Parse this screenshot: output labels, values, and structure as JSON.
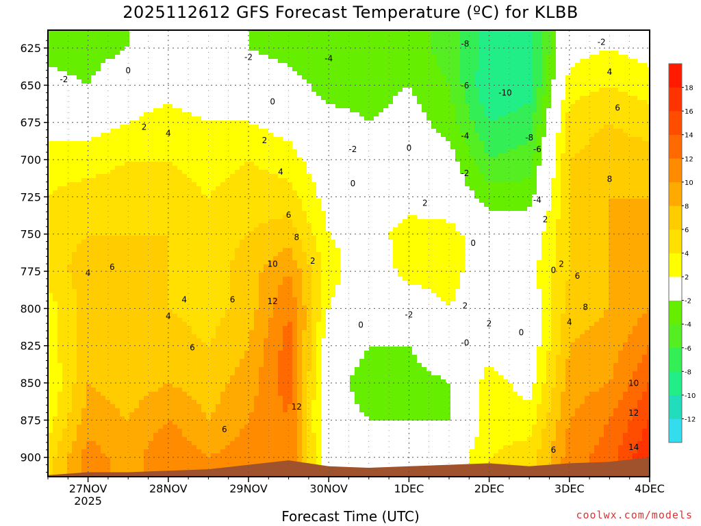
{
  "chart_data": {
    "type": "heatmap",
    "title": "2025112612 GFS Forecast Temperature (ºC) for KLBB",
    "xlabel": "Forecast Time (UTC)",
    "ylabel": "",
    "credit": "coolwx.com/models",
    "x_ticks": [
      {
        "label": "27NOV",
        "sub": "2025",
        "day": 27
      },
      {
        "label": "28NOV",
        "sub": "",
        "day": 28
      },
      {
        "label": "29NOV",
        "sub": "",
        "day": 29
      },
      {
        "label": "30NOV",
        "sub": "",
        "day": 30
      },
      {
        "label": "1DEC",
        "sub": "",
        "day": 31
      },
      {
        "label": "2DEC",
        "sub": "",
        "day": 32
      },
      {
        "label": "3DEC",
        "sub": "",
        "day": 33
      },
      {
        "label": "4DEC",
        "sub": "",
        "day": 34
      }
    ],
    "xlim": [
      26.5,
      34.0
    ],
    "y_axis": {
      "type": "pressure (hPa)",
      "ticks": [
        625,
        650,
        675,
        700,
        725,
        750,
        775,
        800,
        825,
        850,
        875,
        900
      ],
      "ylim": [
        913,
        613
      ],
      "inverted": true
    },
    "colorbar": {
      "levels": [
        -14,
        -12,
        -10,
        -8,
        -6,
        -4,
        -2,
        2,
        4,
        6,
        8,
        10,
        12,
        14,
        16,
        18,
        20
      ],
      "labels": [
        "-12",
        "-10",
        "-8",
        "-6",
        "-4",
        "-2",
        "2",
        "4",
        "6",
        "8",
        "10",
        "12",
        "14",
        "16",
        "18"
      ],
      "colors": [
        "#33ddee",
        "#22ddbb",
        "#22ee88",
        "#33ee55",
        "#55ee22",
        "#66ee00",
        "#ffffff",
        "#ffff00",
        "#ffe000",
        "#ffcc00",
        "#ffaa00",
        "#ff8c00",
        "#ff6a00",
        "#ff4d00",
        "#ff3300",
        "#ff1a00"
      ]
    },
    "rows_hpa": [
      625,
      650,
      675,
      700,
      725,
      750,
      775,
      800,
      825,
      850,
      875,
      900
    ],
    "series": [
      {
        "day": 26.5,
        "temps": [
          -3,
          -1,
          1,
          3,
          4,
          5,
          5,
          3,
          3,
          2,
          3,
          5
        ]
      },
      {
        "day": 27.0,
        "temps": [
          -3,
          -2,
          1,
          3,
          5,
          6,
          7,
          7,
          7,
          8,
          9,
          11
        ]
      },
      {
        "day": 27.5,
        "temps": [
          -2,
          0,
          2,
          4,
          5,
          6,
          6,
          6,
          6,
          7,
          8,
          9
        ]
      },
      {
        "day": 28.0,
        "temps": [
          -2,
          1,
          3,
          4,
          5,
          6,
          6,
          6,
          7,
          8,
          10,
          12
        ]
      },
      {
        "day": 28.5,
        "temps": [
          -2,
          0,
          2,
          3,
          4,
          5,
          5,
          5,
          6,
          7,
          8,
          10
        ]
      },
      {
        "day": 29.0,
        "temps": [
          -2,
          0,
          2,
          4,
          5,
          6,
          7,
          7,
          8,
          9,
          10,
          11
        ]
      },
      {
        "day": 29.5,
        "temps": [
          -3,
          -1,
          1,
          3,
          5,
          7,
          10,
          12,
          13,
          13,
          12,
          12
        ]
      },
      {
        "day": 30.0,
        "temps": [
          -4,
          -3,
          -1,
          0,
          1,
          2,
          3,
          2,
          0,
          -1,
          -1,
          0
        ]
      },
      {
        "day": 30.5,
        "temps": [
          -4,
          -3,
          -2,
          -1,
          0,
          1,
          0,
          -1,
          -2,
          -3,
          -2,
          1
        ]
      },
      {
        "day": 31.0,
        "temps": [
          -3,
          -2,
          -1,
          0,
          1,
          3,
          3,
          0,
          -2,
          -3,
          -2,
          0
        ]
      },
      {
        "day": 31.5,
        "temps": [
          -5,
          -4,
          -3,
          -1,
          0,
          3,
          3,
          2,
          0,
          -2,
          -2,
          0
        ]
      },
      {
        "day": 32.0,
        "temps": [
          -9,
          -10,
          -8,
          -6,
          -3,
          0,
          0,
          0,
          1,
          3,
          3,
          4
        ]
      },
      {
        "day": 32.5,
        "temps": [
          -9,
          -9,
          -7,
          -5,
          -3,
          0,
          1,
          0,
          0,
          1,
          3,
          5
        ]
      },
      {
        "day": 33.0,
        "temps": [
          1,
          3,
          5,
          6,
          6,
          6,
          6,
          7,
          8,
          9,
          10,
          11
        ]
      },
      {
        "day": 33.5,
        "temps": [
          2,
          4,
          6,
          7,
          8,
          8,
          8,
          8,
          9,
          10,
          12,
          13
        ]
      },
      {
        "day": 34.0,
        "temps": [
          1,
          3,
          5,
          7,
          8,
          8,
          9,
          10,
          12,
          14,
          16,
          18
        ]
      }
    ],
    "terrain_pressure_hpa": [
      {
        "day": 26.5,
        "p": 912
      },
      {
        "day": 27.0,
        "p": 910
      },
      {
        "day": 27.5,
        "p": 910
      },
      {
        "day": 28.0,
        "p": 909
      },
      {
        "day": 28.5,
        "p": 908
      },
      {
        "day": 29.0,
        "p": 905
      },
      {
        "day": 29.5,
        "p": 902
      },
      {
        "day": 30.0,
        "p": 906
      },
      {
        "day": 30.5,
        "p": 907
      },
      {
        "day": 31.0,
        "p": 906
      },
      {
        "day": 31.5,
        "p": 905
      },
      {
        "day": 32.0,
        "p": 904
      },
      {
        "day": 32.5,
        "p": 906
      },
      {
        "day": 33.0,
        "p": 904
      },
      {
        "day": 33.5,
        "p": 903
      },
      {
        "day": 34.0,
        "p": 900
      }
    ],
    "terrain_color": "#a0522d",
    "freezing_line_color": "#cc2277",
    "contour_labels": [
      {
        "text": "-2",
        "day": 26.7,
        "p": 648
      },
      {
        "text": "0",
        "day": 27.5,
        "p": 642
      },
      {
        "text": "2",
        "day": 27.7,
        "p": 680
      },
      {
        "text": "4",
        "day": 28.0,
        "p": 684
      },
      {
        "text": "-2",
        "day": 29.0,
        "p": 633
      },
      {
        "text": "0",
        "day": 29.3,
        "p": 663
      },
      {
        "text": "2",
        "day": 29.2,
        "p": 689
      },
      {
        "text": "4",
        "day": 29.4,
        "p": 710
      },
      {
        "text": "6",
        "day": 29.5,
        "p": 739
      },
      {
        "text": "8",
        "day": 29.6,
        "p": 754
      },
      {
        "text": "10",
        "day": 29.3,
        "p": 772
      },
      {
        "text": "12",
        "day": 29.3,
        "p": 797
      },
      {
        "text": "12",
        "day": 29.6,
        "p": 868
      },
      {
        "text": "4",
        "day": 27.0,
        "p": 778
      },
      {
        "text": "6",
        "day": 27.3,
        "p": 774
      },
      {
        "text": "4",
        "day": 28.0,
        "p": 807
      },
      {
        "text": "4",
        "day": 28.2,
        "p": 796
      },
      {
        "text": "6",
        "day": 28.3,
        "p": 828
      },
      {
        "text": "6",
        "day": 28.8,
        "p": 796
      },
      {
        "text": "6",
        "day": 28.7,
        "p": 883
      },
      {
        "text": "2",
        "day": 29.8,
        "p": 770
      },
      {
        "text": "-4",
        "day": 30.0,
        "p": 634
      },
      {
        "text": "-2",
        "day": 30.3,
        "p": 695
      },
      {
        "text": "0",
        "day": 30.3,
        "p": 718
      },
      {
        "text": "0",
        "day": 30.4,
        "p": 813
      },
      {
        "text": "0",
        "day": 31.0,
        "p": 694
      },
      {
        "text": "-2",
        "day": 31.0,
        "p": 806
      },
      {
        "text": "2",
        "day": 31.2,
        "p": 731
      },
      {
        "text": "0",
        "day": 31.8,
        "p": 758
      },
      {
        "text": "2",
        "day": 31.7,
        "p": 800
      },
      {
        "text": "-8",
        "day": 31.7,
        "p": 624
      },
      {
        "text": "-6",
        "day": 31.7,
        "p": 652
      },
      {
        "text": "-10",
        "day": 32.2,
        "p": 657
      },
      {
        "text": "-4",
        "day": 31.7,
        "p": 686
      },
      {
        "text": "-2",
        "day": 31.7,
        "p": 711
      },
      {
        "text": "-8",
        "day": 32.5,
        "p": 687
      },
      {
        "text": "-6",
        "day": 32.6,
        "p": 695
      },
      {
        "text": "-4",
        "day": 32.6,
        "p": 729
      },
      {
        "text": "2",
        "day": 32.0,
        "p": 812
      },
      {
        "text": "-0",
        "day": 31.7,
        "p": 825
      },
      {
        "text": "0",
        "day": 32.4,
        "p": 818
      },
      {
        "text": "2",
        "day": 32.7,
        "p": 742
      },
      {
        "text": "0",
        "day": 32.8,
        "p": 776
      },
      {
        "text": "2",
        "day": 32.9,
        "p": 772
      },
      {
        "text": "6",
        "day": 33.1,
        "p": 780
      },
      {
        "text": "8",
        "day": 33.2,
        "p": 801
      },
      {
        "text": "4",
        "day": 33.0,
        "p": 811
      },
      {
        "text": "6",
        "day": 32.8,
        "p": 897
      },
      {
        "text": "-2",
        "day": 33.4,
        "p": 623
      },
      {
        "text": "4",
        "day": 33.5,
        "p": 643
      },
      {
        "text": "6",
        "day": 33.6,
        "p": 667
      },
      {
        "text": "8",
        "day": 33.5,
        "p": 715
      },
      {
        "text": "10",
        "day": 33.8,
        "p": 852
      },
      {
        "text": "12",
        "day": 33.8,
        "p": 872
      },
      {
        "text": "14",
        "day": 33.8,
        "p": 895
      }
    ]
  }
}
